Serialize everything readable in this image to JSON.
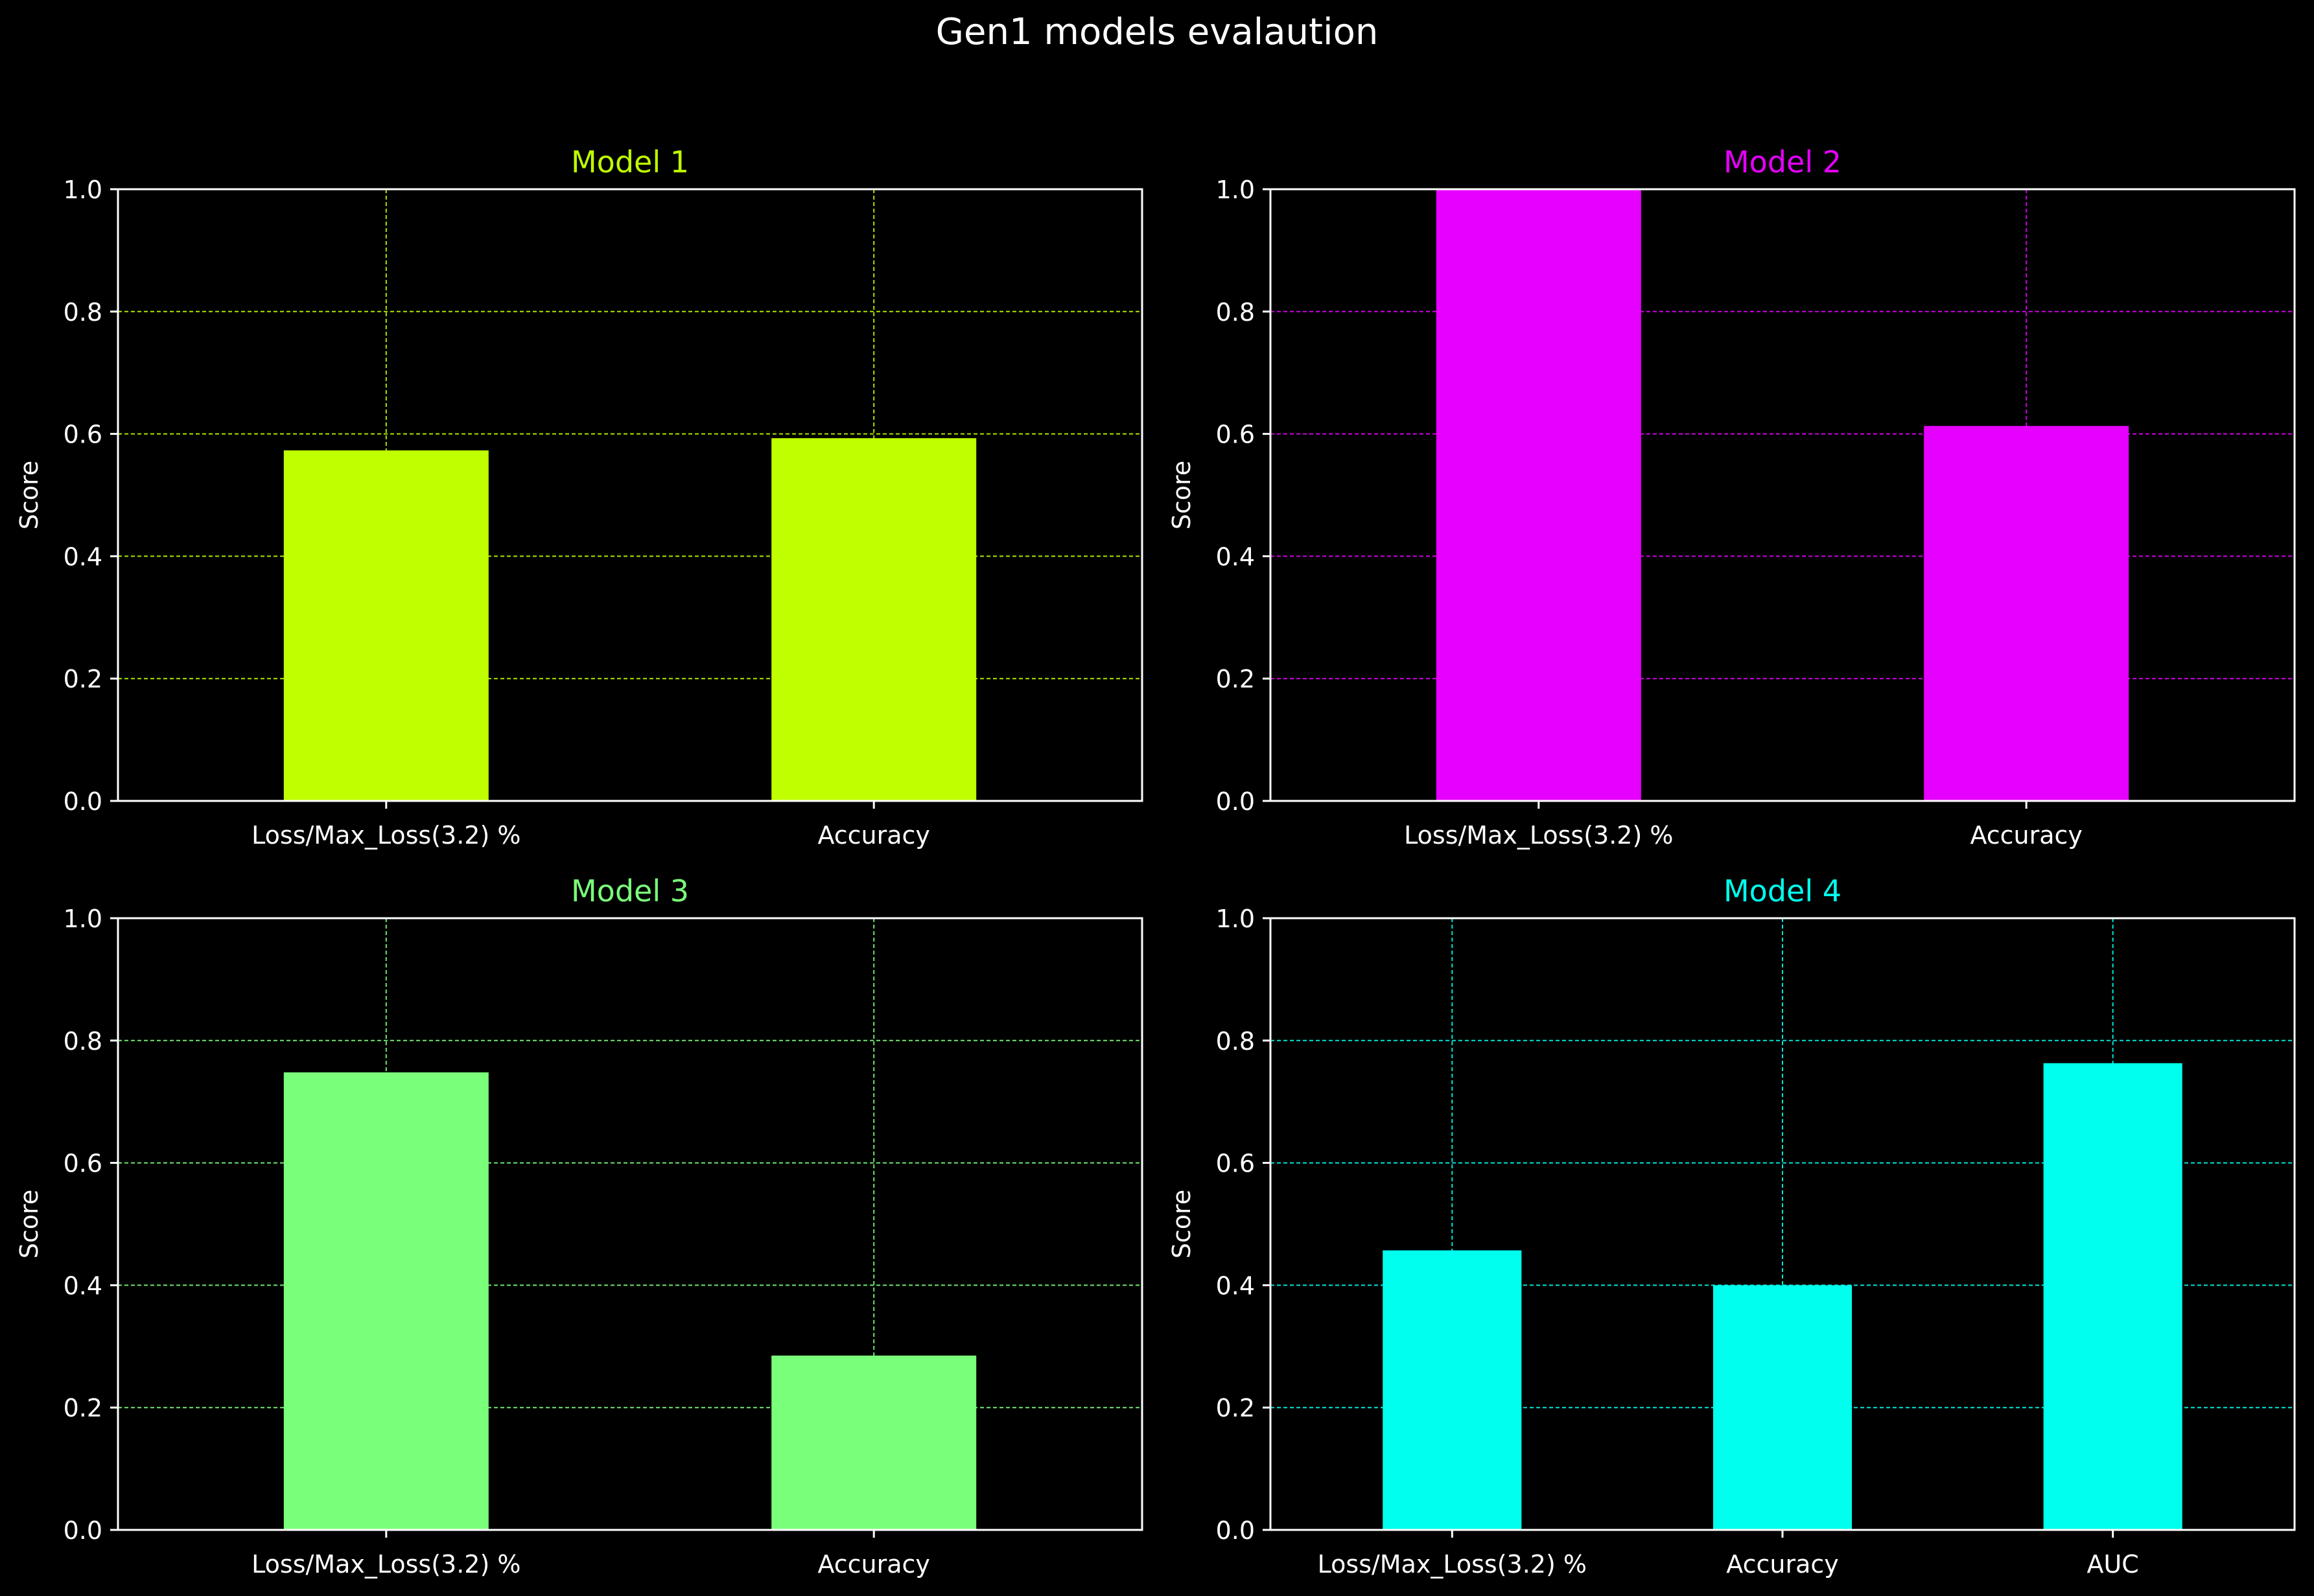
{
  "figure": {
    "title": "Gen1 models evalaution",
    "background": "#000000",
    "text_color": "#ffffff"
  },
  "chart_data": [
    {
      "type": "bar",
      "title": "Model 1",
      "color": "#bfff00",
      "categories": [
        "Loss/Max_Loss(3.2) %",
        "Accuracy"
      ],
      "values": [
        0.573,
        0.593
      ],
      "xlabel": "",
      "ylabel": "Score",
      "ylim": [
        0,
        1
      ],
      "yticks": [
        "0.0",
        "0.2",
        "0.4",
        "0.6",
        "0.8",
        "1.0"
      ],
      "grid": true
    },
    {
      "type": "bar",
      "title": "Model 2",
      "color": "#e600ff",
      "categories": [
        "Loss/Max_Loss(3.2) %",
        "Accuracy"
      ],
      "values": [
        1.0,
        0.613
      ],
      "xlabel": "",
      "ylabel": "Score",
      "ylim": [
        0,
        1
      ],
      "yticks": [
        "0.0",
        "0.2",
        "0.4",
        "0.6",
        "0.8",
        "1.0"
      ],
      "grid": true
    },
    {
      "type": "bar",
      "title": "Model 3",
      "color": "#7aff7a",
      "categories": [
        "Loss/Max_Loss(3.2) %",
        "Accuracy"
      ],
      "values": [
        0.748,
        0.285
      ],
      "xlabel": "",
      "ylabel": "Score",
      "ylim": [
        0,
        1
      ],
      "yticks": [
        "0.0",
        "0.2",
        "0.4",
        "0.6",
        "0.8",
        "1.0"
      ],
      "grid": true
    },
    {
      "type": "bar",
      "title": "Model 4",
      "color": "#00ffee",
      "categories": [
        "Loss/Max_Loss(3.2) %",
        "Accuracy",
        "AUC"
      ],
      "values": [
        0.457,
        0.4,
        0.763
      ],
      "xlabel": "",
      "ylabel": "Score",
      "ylim": [
        0,
        1
      ],
      "yticks": [
        "0.0",
        "0.2",
        "0.4",
        "0.6",
        "0.8",
        "1.0"
      ],
      "grid": true
    }
  ]
}
